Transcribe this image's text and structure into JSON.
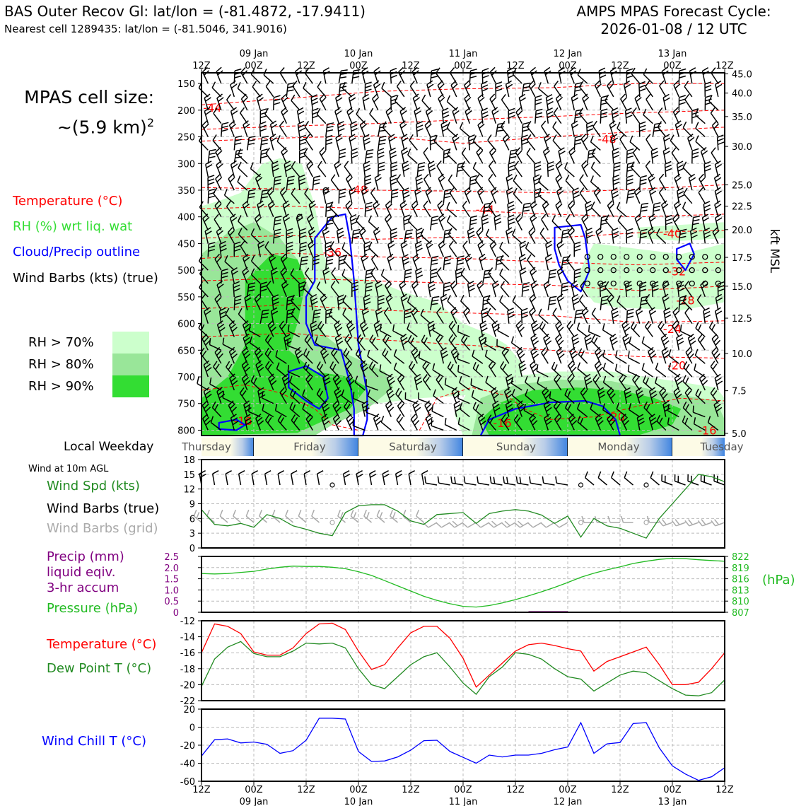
{
  "header": {
    "title_left": "BAS Outer Recov Gl: lat/lon = (-81.4872, -17.9411)",
    "subtitle_left": "Nearest cell 1289435: lat/lon = (-81.5046, 341.9016)",
    "title_right_line1": "AMPS MPAS Forecast Cycle:",
    "title_right_line2": "2026-01-08 / 12 UTC",
    "cell_size_line1": "MPAS cell size:",
    "cell_size_line2": "~(5.9 km)",
    "cell_size_exp": "2"
  },
  "legend": {
    "temperature": "Temperature (°C)",
    "rh": "RH (%) wrt liq. wat",
    "cloud": "Cloud/Precip outline",
    "wind_barbs": "Wind Barbs (kts) (true)",
    "rh70": "RH > 70%",
    "rh80": "RH > 80%",
    "rh90": "RH > 90%",
    "colors": {
      "temperature": "#ff0000",
      "rh": "#33dd33",
      "cloud": "#0000ff",
      "rh70": "#ccffcc",
      "rh80": "#99e699",
      "rh90": "#33dd33"
    }
  },
  "weekday_bar": {
    "label": "Local Weekday",
    "days": [
      "Thursday",
      "Friday",
      "Saturday",
      "Sunday",
      "Monday",
      "Tuesday"
    ]
  },
  "panels": {
    "wind10m_title": "Wind at 10m AGL",
    "wind_spd": "Wind Spd (kts)",
    "wind_barbs_true": "Wind Barbs (true)",
    "wind_barbs_grid": "Wind Barbs (grid)",
    "precip_line1": "Precip (mm)",
    "precip_line2": "liquid eqiv.",
    "precip_line3": "3-hr accum",
    "pressure": "Pressure (hPa)",
    "pressure_unit": "(hPa)",
    "temperature": "Temperature (°C)",
    "dewpoint": "Dew Point T (°C)",
    "windchill": "Wind Chill T (°C)"
  },
  "chart_data": [
    {
      "type": "heatmap",
      "title": "Upper-air cross section",
      "x_top_ticks": [
        "12Z",
        "00Z",
        "12Z",
        "00Z",
        "12Z",
        "00Z",
        "12Z",
        "00Z",
        "12Z",
        "00Z",
        "12Z"
      ],
      "x_top_dates": [
        "09 Jan",
        "10 Jan",
        "11 Jan",
        "12 Jan",
        "13 Jan"
      ],
      "y_left_ticks": [
        150,
        200,
        250,
        300,
        350,
        400,
        450,
        500,
        550,
        600,
        650,
        700,
        750,
        800
      ],
      "ylim_hpa": [
        810,
        130
      ],
      "y_right_label": "kft MSL",
      "y_right_ticks": [
        {
          "label": "45.0",
          "hpa": 132
        },
        {
          "label": "40.0",
          "hpa": 168
        },
        {
          "label": "35.0",
          "hpa": 212
        },
        {
          "label": "30.0",
          "hpa": 268
        },
        {
          "label": "25.0",
          "hpa": 340
        },
        {
          "label": "22.5",
          "hpa": 380
        },
        {
          "label": "20.0",
          "hpa": 424
        },
        {
          "label": "17.5",
          "hpa": 476
        },
        {
          "label": "15.0",
          "hpa": 530
        },
        {
          "label": "12.5",
          "hpa": 590
        },
        {
          "label": "10.0",
          "hpa": 656
        },
        {
          "label": "7.5",
          "hpa": 726
        },
        {
          "label": "5.0",
          "hpa": 806
        }
      ],
      "temperature_contour_labels": [
        {
          "text": "-44",
          "t": 0.25,
          "p": 195
        },
        {
          "text": "-48",
          "t": 3.6,
          "p": 349
        },
        {
          "text": "-48",
          "t": 9.3,
          "p": 254
        },
        {
          "text": "-44",
          "t": 6.5,
          "p": 386
        },
        {
          "text": "-40",
          "t": 10.8,
          "p": 431
        },
        {
          "text": "-36",
          "t": 3.0,
          "p": 466
        },
        {
          "text": "-32",
          "t": 10.9,
          "p": 502
        },
        {
          "text": "-28",
          "t": 11.1,
          "p": 556
        },
        {
          "text": "-24",
          "t": 10.8,
          "p": 610
        },
        {
          "text": "-20",
          "t": 10.9,
          "p": 678
        },
        {
          "text": "-20",
          "t": 9.5,
          "p": 774
        },
        {
          "text": "-16",
          "t": 0.95,
          "p": 782
        },
        {
          "text": "-16",
          "t": 6.9,
          "p": 786
        },
        {
          "text": "-16",
          "t": 11.6,
          "p": 800
        }
      ]
    },
    {
      "type": "line",
      "title": "Wind at 10m AGL",
      "x_hours": [
        0,
        3,
        6,
        9,
        12,
        15,
        18,
        21,
        24,
        27,
        30,
        33,
        36,
        39,
        42,
        45,
        48,
        51,
        54,
        57,
        60,
        63,
        66,
        69,
        72,
        75,
        78,
        81,
        84,
        87,
        90,
        93,
        96,
        99,
        102,
        105,
        108,
        111,
        114,
        117,
        120
      ],
      "series": [
        {
          "name": "Wind Spd (kts)",
          "color": "#228b22",
          "values": [
            7.8,
            4.8,
            4.5,
            5,
            4.2,
            6.8,
            6,
            4.5,
            3.8,
            3,
            2.5,
            7.2,
            8.6,
            8.8,
            8.8,
            7.5,
            5.5,
            4.8,
            6.8,
            7,
            7.2,
            5,
            7,
            7.5,
            7.8,
            7.5,
            6.7,
            5,
            6.5,
            2.2,
            6,
            4.5,
            4,
            3,
            2,
            6,
            9,
            12,
            15,
            14.5,
            13.5
          ]
        }
      ],
      "ylim": [
        0,
        18
      ],
      "y_ticks": [
        0,
        3,
        6,
        9,
        12,
        15,
        18
      ]
    },
    {
      "type": "line",
      "title": "Precip and Pressure",
      "left_axis": {
        "label": "Precip (mm)",
        "ylim": [
          0,
          2.5
        ],
        "ticks": [
          "0",
          "0.5",
          "1.0",
          "1.5",
          "2.0",
          "2.5"
        ]
      },
      "right_axis": {
        "label": "(hPa)",
        "ylim": [
          807,
          822
        ],
        "ticks": [
          "807",
          "810",
          "813",
          "816",
          "819",
          "822"
        ]
      },
      "precip_values_mm": [
        0,
        0,
        0,
        0,
        0,
        0,
        0,
        0,
        0,
        0,
        0,
        0,
        0,
        0,
        0,
        0,
        0,
        0,
        0,
        0,
        0,
        0,
        0,
        0,
        0,
        0.05,
        0.05,
        0.05,
        0,
        0,
        0,
        0,
        0,
        0,
        0,
        0,
        0,
        0,
        0,
        0,
        0
      ],
      "series": [
        {
          "name": "Pressure (hPa)",
          "color": "#22bb22",
          "values": [
            817.4,
            817.3,
            817.4,
            817.7,
            818,
            818.6,
            819.1,
            819.4,
            819.3,
            819.3,
            819.1,
            818.7,
            817.9,
            816.9,
            815.5,
            814.1,
            812.7,
            811.3,
            810.2,
            809.3,
            808.6,
            808.4,
            808.8,
            809.5,
            810.4,
            811.4,
            812.5,
            813.7,
            815,
            816.4,
            817.5,
            818.4,
            819.2,
            820.1,
            820.7,
            821.2,
            821.5,
            821.4,
            821.1,
            820.9,
            820.7
          ]
        }
      ]
    },
    {
      "type": "line",
      "title": "Temperature and Dew Point",
      "x_hours": [
        0,
        3,
        6,
        9,
        12,
        15,
        18,
        21,
        24,
        27,
        30,
        33,
        36,
        39,
        42,
        45,
        48,
        51,
        54,
        57,
        60,
        63,
        66,
        69,
        72,
        75,
        78,
        81,
        84,
        87,
        90,
        93,
        96,
        99,
        102,
        105,
        108,
        111,
        114,
        117,
        120
      ],
      "series": [
        {
          "name": "Temperature (°C)",
          "color": "#ff0000",
          "values": [
            -16,
            -12.4,
            -12.7,
            -13.6,
            -15.9,
            -16.3,
            -16.3,
            -15.4,
            -13.6,
            -12.4,
            -12.3,
            -13.1,
            -15.8,
            -18.1,
            -17.5,
            -15.4,
            -13.5,
            -12.7,
            -12.7,
            -14.2,
            -16.7,
            -20.3,
            -18.8,
            -17.3,
            -15.8,
            -15,
            -14.8,
            -15.1,
            -15.5,
            -15.8,
            -18.3,
            -17.1,
            -16.5,
            -15.9,
            -15.3,
            -17.5,
            -20,
            -20,
            -19.7,
            -18,
            -16
          ]
        },
        {
          "name": "Dew Point T (°C)",
          "color": "#228b22",
          "values": [
            -20.2,
            -16.8,
            -15.3,
            -14.6,
            -16.1,
            -16.5,
            -16.5,
            -15.8,
            -14.8,
            -14.9,
            -14.8,
            -15.4,
            -18,
            -20,
            -20.5,
            -19,
            -17.5,
            -16.5,
            -16,
            -17.8,
            -19.8,
            -21.2,
            -19,
            -17.8,
            -16,
            -16.2,
            -16.8,
            -18,
            -19,
            -19.3,
            -20.8,
            -19.8,
            -18.8,
            -18.3,
            -18.5,
            -19.5,
            -20.5,
            -21.3,
            -21.4,
            -21,
            -19.4
          ]
        }
      ],
      "ylim": [
        -22,
        -12
      ],
      "y_ticks": [
        -22,
        -20,
        -18,
        -16,
        -14,
        -12
      ]
    },
    {
      "type": "line",
      "title": "Wind Chill",
      "x_hours": [
        0,
        3,
        6,
        9,
        12,
        15,
        18,
        21,
        24,
        27,
        30,
        33,
        36,
        39,
        42,
        45,
        48,
        51,
        54,
        57,
        60,
        63,
        66,
        69,
        72,
        75,
        78,
        81,
        84,
        87,
        90,
        93,
        96,
        99,
        102,
        105,
        108,
        111,
        114,
        117,
        120
      ],
      "series": [
        {
          "name": "Wind Chill T (°C)",
          "color": "#0000ff",
          "values": [
            -32,
            -14,
            -13,
            -17.5,
            -16.5,
            -19,
            -29,
            -26,
            -14.5,
            10,
            10,
            9,
            -27,
            -38,
            -37.5,
            -33,
            -25.5,
            -15,
            -14.5,
            -27,
            -33.5,
            -40,
            -31,
            -33,
            -31,
            -31,
            -29,
            -25,
            -22,
            5,
            -29,
            -18.5,
            -17,
            4,
            5,
            -23,
            -43,
            -52,
            -59,
            -55,
            -45
          ]
        }
      ],
      "ylim": [
        -60,
        20
      ],
      "y_ticks": [
        -60,
        -40,
        -20,
        0,
        20
      ]
    }
  ],
  "x_bottom_ticks": [
    "12Z",
    "00Z",
    "12Z",
    "00Z",
    "12Z",
    "00Z",
    "12Z",
    "00Z",
    "12Z",
    "00Z",
    "12Z"
  ],
  "x_bottom_dates": [
    "09 Jan",
    "10 Jan",
    "11 Jan",
    "12 Jan",
    "13 Jan"
  ]
}
